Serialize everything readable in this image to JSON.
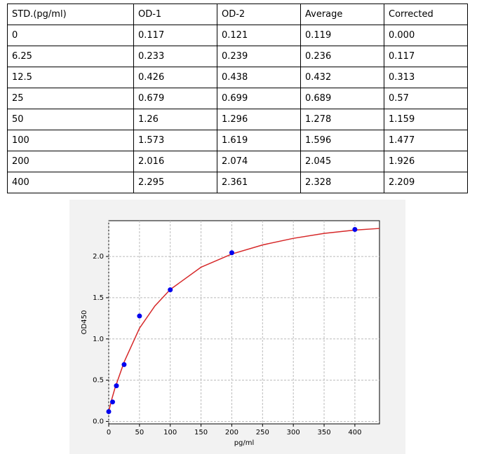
{
  "table": {
    "header": [
      "STD.(pg/ml)",
      "OD-1",
      "OD-2",
      "Average",
      "Corrected"
    ],
    "rows": [
      [
        "0",
        "0.117",
        "0.121",
        "0.119",
        "0.000"
      ],
      [
        "6.25",
        "0.233",
        "0.239",
        "0.236",
        "0.117"
      ],
      [
        "12.5",
        "0.426",
        "0.438",
        "0.432",
        "0.313"
      ],
      [
        "25",
        "0.679",
        "0.699",
        "0.689",
        "0.57"
      ],
      [
        "50",
        "1.26",
        "1.296",
        "1.278",
        "1.159"
      ],
      [
        "100",
        "1.573",
        "1.619",
        "1.596",
        "1.477"
      ],
      [
        "200",
        "2.016",
        "2.074",
        "2.045",
        "1.926"
      ],
      [
        "400",
        "2.295",
        "2.361",
        "2.328",
        "2.209"
      ]
    ]
  },
  "chart_data": {
    "type": "scatter",
    "xlabel": "pg/ml",
    "ylabel": "OD450",
    "points": {
      "color": "#0000ee",
      "x": [
        0,
        6.25,
        12.5,
        25,
        50,
        100,
        200,
        400
      ],
      "values": [
        0.119,
        0.236,
        0.432,
        0.689,
        1.278,
        1.596,
        2.045,
        2.328
      ]
    },
    "curve": {
      "color": "#d62728",
      "x": [
        0,
        5,
        10,
        25,
        50,
        75,
        100,
        150,
        200,
        250,
        300,
        350,
        400,
        440
      ],
      "values": [
        0.12,
        0.27,
        0.4,
        0.72,
        1.13,
        1.4,
        1.6,
        1.87,
        2.03,
        2.14,
        2.22,
        2.28,
        2.32,
        2.34
      ]
    },
    "xlim": [
      0,
      440
    ],
    "ylim": [
      -0.03,
      2.434
    ],
    "xticks": [
      0,
      50,
      100,
      150,
      200,
      250,
      300,
      350,
      400
    ],
    "yticks": [
      {
        "value": 0,
        "label": "0.0"
      },
      {
        "value": 0.5,
        "label": "0.5"
      },
      {
        "value": 1,
        "label": "1.0"
      },
      {
        "value": 1.5,
        "label": "1.5"
      },
      {
        "value": 2,
        "label": "2.0"
      }
    ],
    "grid": true
  }
}
